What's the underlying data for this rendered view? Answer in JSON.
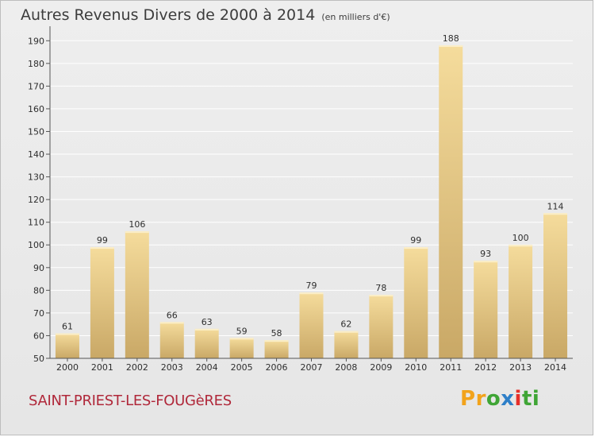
{
  "title": "Autres Revenus Divers de 2000 à 2014",
  "subtitle": "(en milliers d'€)",
  "town": "SAINT-PRIEST-LES-FOUGèRES",
  "logo": {
    "letters": [
      "P",
      "r",
      "o",
      "x",
      "i",
      "t",
      "i"
    ],
    "colors": [
      "#f2a31b",
      "#f2a31b",
      "#3fa535",
      "#2e7fc8",
      "#e6302a",
      "#3fa535",
      "#3fa535"
    ]
  },
  "colors": {
    "bar_light": "#f5dc9c",
    "bar_dark": "#c9a866",
    "grid": "#ffffff",
    "axis": "#555555"
  },
  "chart_data": {
    "type": "bar",
    "categories": [
      "2000",
      "2001",
      "2002",
      "2003",
      "2004",
      "2005",
      "2006",
      "2007",
      "2008",
      "2009",
      "2010",
      "2011",
      "2012",
      "2013",
      "2014"
    ],
    "values": [
      61,
      99,
      106,
      66,
      63,
      59,
      58,
      79,
      62,
      78,
      99,
      188,
      93,
      100,
      114
    ],
    "yticks": [
      50,
      60,
      70,
      80,
      90,
      100,
      110,
      120,
      130,
      140,
      150,
      160,
      170,
      180,
      190
    ],
    "ylim": [
      50,
      195
    ],
    "grid": true,
    "xlabel": "",
    "ylabel": ""
  }
}
